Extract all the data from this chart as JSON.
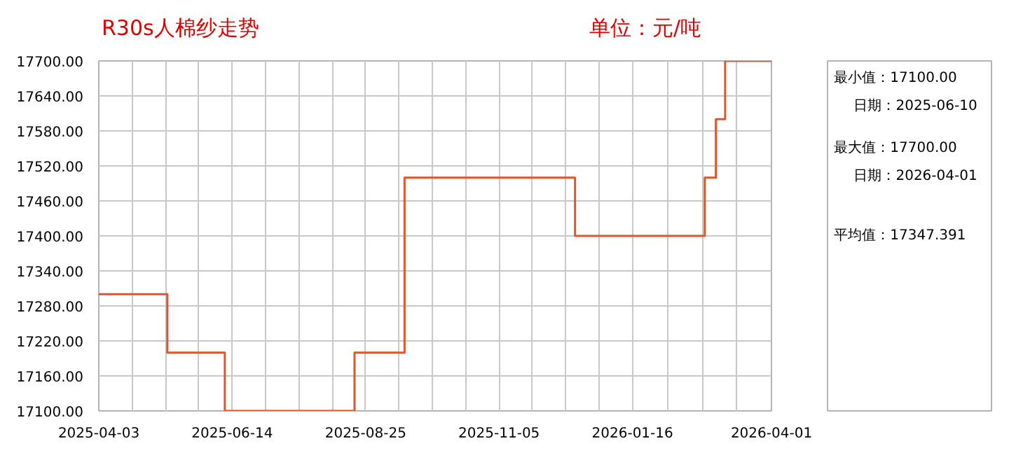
{
  "chart_data": {
    "type": "step",
    "title": "R30s人棉纱走势",
    "subtitle": "单位：元/吨",
    "x": [
      "2025-04-03",
      "2025-05-10",
      "2025-06-10",
      "2025-08-19",
      "2025-09-15",
      "2025-12-16",
      "2026-02-24",
      "2026-03-02",
      "2026-03-07",
      "2026-04-01"
    ],
    "series": [
      {
        "color": "#e0552a",
        "values": [
          17300,
          17200,
          17100,
          17200,
          17500,
          17400,
          17500,
          17600,
          17700,
          17700
        ]
      }
    ],
    "xlim": [
      "2025-04-03",
      "2026-04-01"
    ],
    "xticks": [
      {
        "value": "2025-04-03",
        "label": "2025-04-03"
      },
      {
        "value": "2025-04-21",
        "label": null
      },
      {
        "value": "2025-05-09",
        "label": null
      },
      {
        "value": "2025-05-27",
        "label": null
      },
      {
        "value": "2025-06-14",
        "label": "2025-06-14"
      },
      {
        "value": "2025-07-02",
        "label": null
      },
      {
        "value": "2025-07-20",
        "label": null
      },
      {
        "value": "2025-08-07",
        "label": null
      },
      {
        "value": "2025-08-25",
        "label": "2025-08-25"
      },
      {
        "value": "2025-09-12",
        "label": null
      },
      {
        "value": "2025-09-30",
        "label": null
      },
      {
        "value": "2025-10-18",
        "label": null
      },
      {
        "value": "2025-11-05",
        "label": "2025-11-05"
      },
      {
        "value": "2025-11-23",
        "label": null
      },
      {
        "value": "2025-12-11",
        "label": null
      },
      {
        "value": "2025-12-29",
        "label": null
      },
      {
        "value": "2026-01-16",
        "label": "2026-01-16"
      },
      {
        "value": "2026-02-04",
        "label": null
      },
      {
        "value": "2026-02-23",
        "label": null
      },
      {
        "value": "2026-03-13",
        "label": null
      },
      {
        "value": "2026-04-01",
        "label": "2026-04-01"
      }
    ],
    "ylim": [
      17100,
      17700
    ],
    "yticks": [
      {
        "value": 17100,
        "label": "17100.00"
      },
      {
        "value": 17160,
        "label": "17160.00"
      },
      {
        "value": 17220,
        "label": "17220.00"
      },
      {
        "value": 17280,
        "label": "17280.00"
      },
      {
        "value": 17340,
        "label": "17340.00"
      },
      {
        "value": 17400,
        "label": "17400.00"
      },
      {
        "value": 17460,
        "label": "17460.00"
      },
      {
        "value": 17520,
        "label": "17520.00"
      },
      {
        "value": 17580,
        "label": "17580.00"
      },
      {
        "value": 17640,
        "label": "17640.00"
      },
      {
        "value": 17700,
        "label": "17700.00"
      }
    ],
    "grid": true,
    "annotations": [
      "最小值：17100.00",
      "日期：2025-06-10",
      "最大值：17700.00",
      "日期：2026-04-01",
      "平均值：17347.391"
    ]
  }
}
